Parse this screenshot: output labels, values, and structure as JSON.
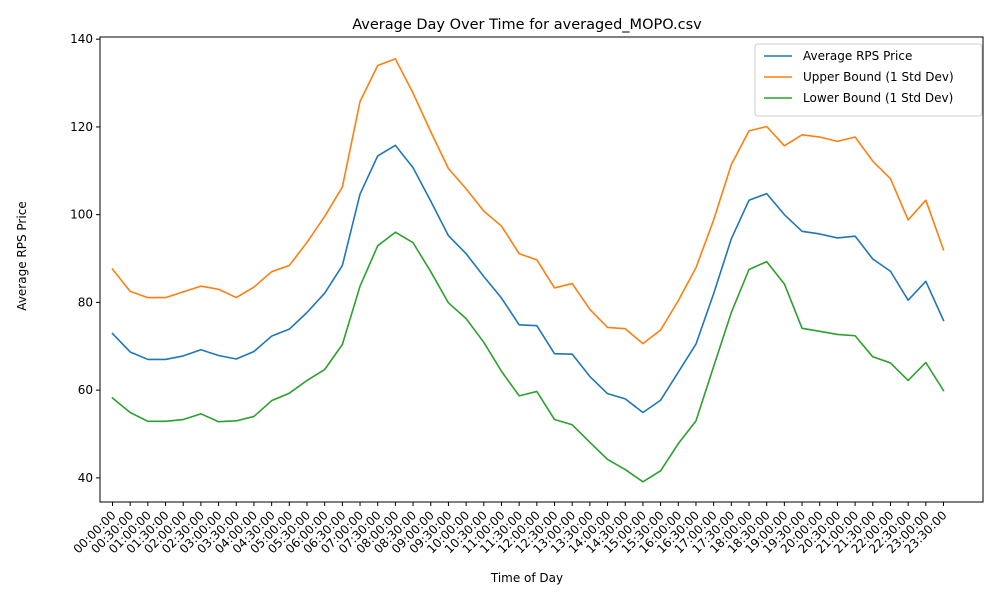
{
  "chart_data": {
    "type": "line",
    "title": "Average Day Over Time for averaged_MOPO.csv",
    "xlabel": "Time of Day",
    "ylabel": "Average RPS Price",
    "ylim": [
      34.5,
      140.5
    ],
    "yticks": [
      40,
      60,
      80,
      100,
      120,
      140
    ],
    "grid": false,
    "legend_position": "top-right",
    "categories": [
      "00:00:00",
      "00:30:00",
      "01:00:00",
      "01:30:00",
      "02:00:00",
      "02:30:00",
      "03:00:00",
      "03:30:00",
      "04:00:00",
      "04:30:00",
      "05:00:00",
      "05:30:00",
      "06:00:00",
      "06:30:00",
      "07:00:00",
      "07:30:00",
      "08:00:00",
      "08:30:00",
      "09:00:00",
      "09:30:00",
      "10:00:00",
      "10:30:00",
      "11:00:00",
      "11:30:00",
      "12:00:00",
      "12:30:00",
      "13:00:00",
      "13:30:00",
      "14:00:00",
      "14:30:00",
      "15:00:00",
      "15:30:00",
      "16:00:00",
      "16:30:00",
      "17:00:00",
      "17:30:00",
      "18:00:00",
      "18:30:00",
      "19:00:00",
      "19:30:00",
      "20:00:00",
      "20:30:00",
      "21:00:00",
      "21:30:00",
      "22:00:00",
      "22:30:00",
      "23:00:00",
      "23:30:00"
    ],
    "series": [
      {
        "name": "Average RPS Price",
        "color": "#1f77b4",
        "values": [
          72.9,
          68.7,
          67.0,
          67.0,
          67.8,
          69.2,
          67.9,
          67.1,
          68.8,
          72.3,
          73.9,
          77.7,
          82.1,
          88.4,
          104.7,
          113.4,
          115.8,
          110.7,
          103.1,
          95.2,
          91.1,
          85.9,
          81.0,
          74.9,
          74.7,
          68.3,
          68.2,
          63.1,
          59.2,
          58.0,
          54.9,
          57.7,
          64.1,
          70.5,
          82.0,
          94.5,
          103.3,
          104.8,
          100.0,
          96.2,
          95.6,
          94.7,
          95.1,
          89.9,
          87.1,
          80.5,
          84.8,
          75.9
        ]
      },
      {
        "name": "Upper Bound (1 Std Dev)",
        "color": "#ff7f0e",
        "values": [
          87.6,
          82.5,
          81.1,
          81.1,
          82.4,
          83.7,
          83.0,
          81.1,
          83.5,
          87.0,
          88.4,
          93.7,
          99.6,
          106.3,
          125.8,
          134.0,
          135.5,
          127.7,
          118.9,
          110.5,
          105.9,
          100.8,
          97.4,
          91.1,
          89.7,
          83.3,
          84.3,
          78.4,
          74.3,
          74.0,
          70.6,
          73.7,
          80.4,
          87.9,
          98.8,
          111.4,
          119.1,
          120.1,
          115.7,
          118.2,
          117.7,
          116.7,
          117.7,
          112.2,
          108.2,
          98.8,
          103.3,
          92.0
        ]
      },
      {
        "name": "Lower Bound (1 Std Dev)",
        "color": "#2ca02c",
        "values": [
          58.2,
          54.9,
          52.9,
          52.9,
          53.3,
          54.6,
          52.8,
          53.0,
          54.0,
          57.6,
          59.3,
          62.2,
          64.7,
          70.4,
          83.7,
          92.9,
          96.0,
          93.6,
          87.0,
          79.9,
          76.3,
          70.9,
          64.3,
          58.7,
          59.7,
          53.3,
          52.1,
          48.1,
          44.2,
          41.9,
          39.1,
          41.6,
          47.8,
          53.0,
          65.4,
          77.7,
          87.5,
          89.3,
          84.2,
          74.1,
          73.4,
          72.7,
          72.4,
          67.6,
          66.2,
          62.2,
          66.3,
          59.9
        ]
      }
    ]
  }
}
